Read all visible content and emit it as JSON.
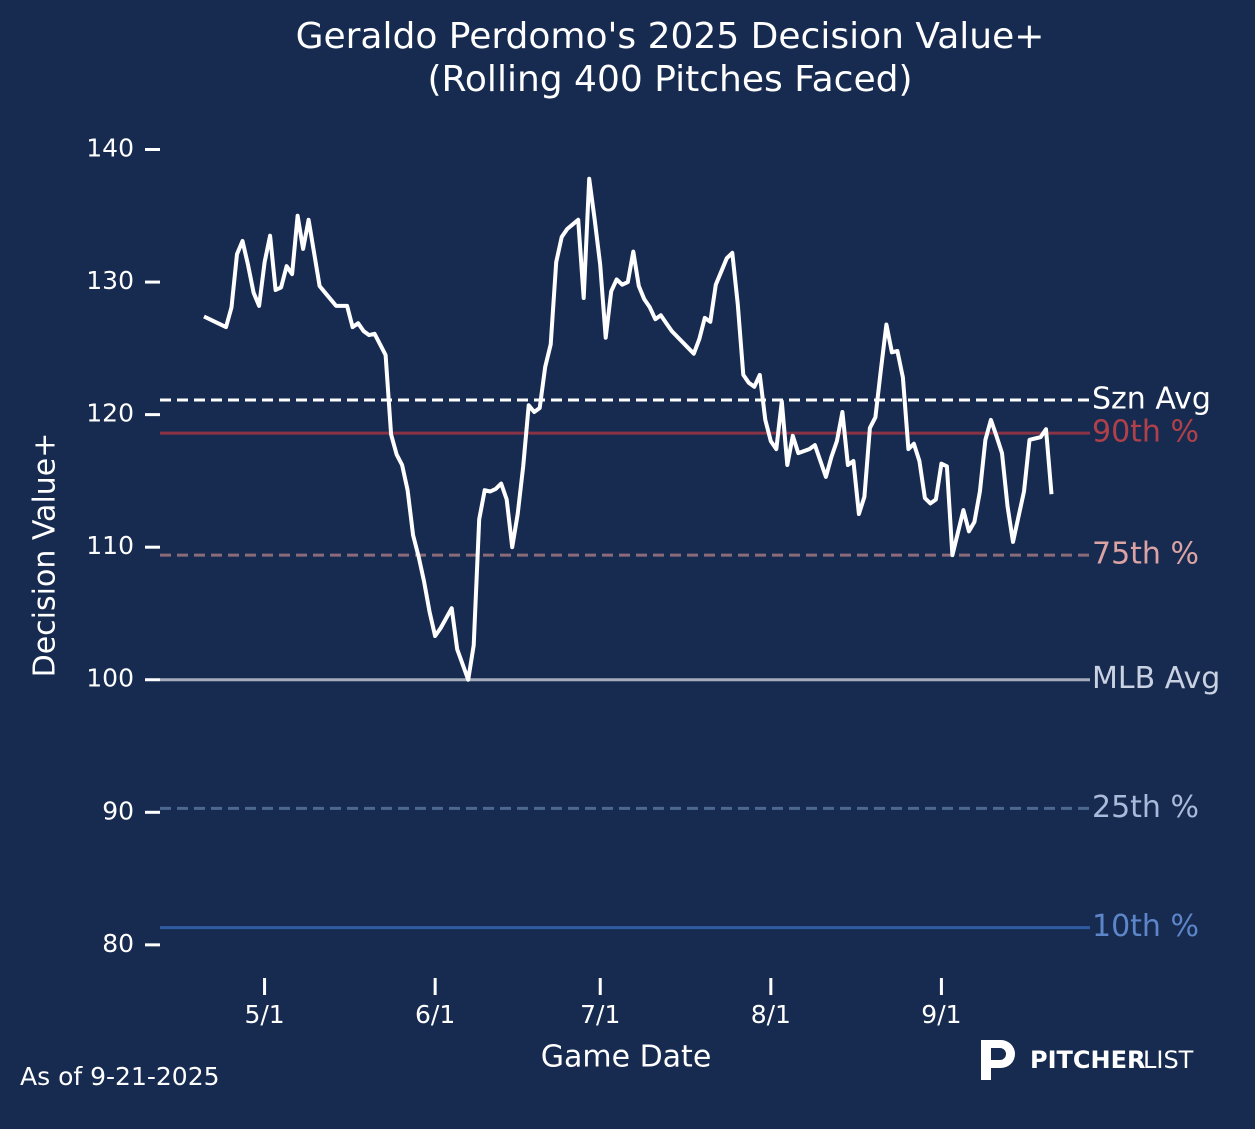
{
  "chart_data": {
    "type": "line",
    "title": "Geraldo Perdomo's 2025 Decision Value+",
    "subtitle": "(Rolling 400 Pitches Faced)",
    "x_label": "Game Date",
    "y_label": "Decision Value+",
    "footnote": "As of 9-21-2025",
    "brand": {
      "bold": "PITCHER",
      "light": "LIST"
    },
    "xlim": [
      "4/12",
      "9/28"
    ],
    "xticks": [
      "5/1",
      "6/1",
      "7/1",
      "8/1",
      "9/1"
    ],
    "ylim": [
      77.5,
      142
    ],
    "yticks": [
      80,
      90,
      100,
      110,
      120,
      130,
      140
    ],
    "x": [
      "4/20",
      "4/22",
      "4/24",
      "4/25",
      "4/26",
      "4/27",
      "4/28",
      "4/29",
      "4/30",
      "5/1",
      "5/2",
      "5/3",
      "5/4",
      "5/5",
      "5/6",
      "5/7",
      "5/8",
      "5/9",
      "5/11",
      "5/12",
      "5/14",
      "5/16",
      "5/17",
      "5/18",
      "5/19",
      "5/20",
      "5/21",
      "5/23",
      "5/24",
      "5/25",
      "5/26",
      "5/27",
      "5/28",
      "5/29",
      "5/30",
      "5/31",
      "6/1",
      "6/2",
      "6/4",
      "6/5",
      "6/7",
      "6/8",
      "6/9",
      "6/10",
      "6/11",
      "6/12",
      "6/13",
      "6/14",
      "6/15",
      "6/16",
      "6/17",
      "6/18",
      "6/19",
      "6/20",
      "6/21",
      "6/22",
      "6/23",
      "6/24",
      "6/25",
      "6/27",
      "6/28",
      "6/29",
      "6/30",
      "7/1",
      "7/2",
      "7/3",
      "7/4",
      "7/5",
      "7/6",
      "7/7",
      "7/8",
      "7/9",
      "7/10",
      "7/11",
      "7/12",
      "7/13",
      "7/14",
      "7/18",
      "7/19",
      "7/20",
      "7/21",
      "7/22",
      "7/24",
      "7/25",
      "7/26",
      "7/27",
      "7/28",
      "7/29",
      "7/30",
      "7/31",
      "8/1",
      "8/2",
      "8/3",
      "8/4",
      "8/5",
      "8/6",
      "8/8",
      "8/9",
      "8/10",
      "8/11",
      "8/12",
      "8/13",
      "8/14",
      "8/15",
      "8/16",
      "8/17",
      "8/18",
      "8/19",
      "8/20",
      "8/21",
      "8/22",
      "8/23",
      "8/24",
      "8/25",
      "8/26",
      "8/27",
      "8/28",
      "8/29",
      "8/30",
      "8/31",
      "9/1",
      "9/2",
      "9/3",
      "9/4",
      "9/5",
      "9/6",
      "9/7",
      "9/8",
      "9/9",
      "9/10",
      "9/11",
      "9/12",
      "9/13",
      "9/14",
      "9/15",
      "9/16",
      "9/17",
      "9/18",
      "9/19",
      "9/20",
      "9/21"
    ],
    "series": [
      {
        "color": "#ffffff",
        "values": [
          127.4,
          127.0,
          126.6,
          128.1,
          132.1,
          133.1,
          131.3,
          129.2,
          128.2,
          131.5,
          133.5,
          129.4,
          129.6,
          131.2,
          130.6,
          135.0,
          132.5,
          134.7,
          129.7,
          129.2,
          128.2,
          128.2,
          126.6,
          126.9,
          126.3,
          126.0,
          126.1,
          124.5,
          118.5,
          117.0,
          116.2,
          114.3,
          110.9,
          109.3,
          107.4,
          105.1,
          103.3,
          103.9,
          105.4,
          102.3,
          100.0,
          102.6,
          112.1,
          114.3,
          114.2,
          114.4,
          114.8,
          113.6,
          110.0,
          112.5,
          116.1,
          120.7,
          120.2,
          120.5,
          123.6,
          125.3,
          131.5,
          133.4,
          134.0,
          134.7,
          128.8,
          137.8,
          134.7,
          131.3,
          125.8,
          129.3,
          130.2,
          129.8,
          130.0,
          132.3,
          129.7,
          128.7,
          128.1,
          127.2,
          127.5,
          126.9,
          126.3,
          124.6,
          125.7,
          127.3,
          127.0,
          129.8,
          131.8,
          132.2,
          128.3,
          123.0,
          122.4,
          122.1,
          123.0,
          119.6,
          118.0,
          117.4,
          121.0,
          116.2,
          118.4,
          117.1,
          117.4,
          117.7,
          116.5,
          115.3,
          116.8,
          118.0,
          120.2,
          116.2,
          116.5,
          112.5,
          113.8,
          119.0,
          119.8,
          123.4,
          126.8,
          124.7,
          124.8,
          122.8,
          117.4,
          117.8,
          116.5,
          113.7,
          113.3,
          113.6,
          116.3,
          116.1,
          109.4,
          111.1,
          112.8,
          111.2,
          111.9,
          114.2,
          118.1,
          119.6,
          118.4,
          117.1,
          113.1,
          110.4,
          112.3,
          114.2,
          118.1,
          118.2,
          118.3,
          118.9,
          114.0
        ]
      }
    ],
    "reference_lines": [
      {
        "label": "Szn Avg",
        "value": 121.1,
        "color": "#ffffff",
        "label_color": "#ffffff",
        "dashed": true
      },
      {
        "label": "90th %",
        "value": 118.6,
        "color": "#8a3346",
        "label_color": "#b0404a",
        "dashed": false
      },
      {
        "label": "75th %",
        "value": 109.4,
        "color": "#8a6b7a",
        "label_color": "#dba3a3",
        "dashed": true
      },
      {
        "label": "MLB Avg",
        "value": 100,
        "color": "#a4abbb",
        "label_color": "#c9d1e2",
        "dashed": false
      },
      {
        "label": "25th %",
        "value": 90.3,
        "color": "#4d6890",
        "label_color": "#a9badb",
        "dashed": true
      },
      {
        "label": "10th %",
        "value": 81.3,
        "color": "#2f5ba3",
        "label_color": "#5c86c9",
        "dashed": false
      }
    ]
  }
}
